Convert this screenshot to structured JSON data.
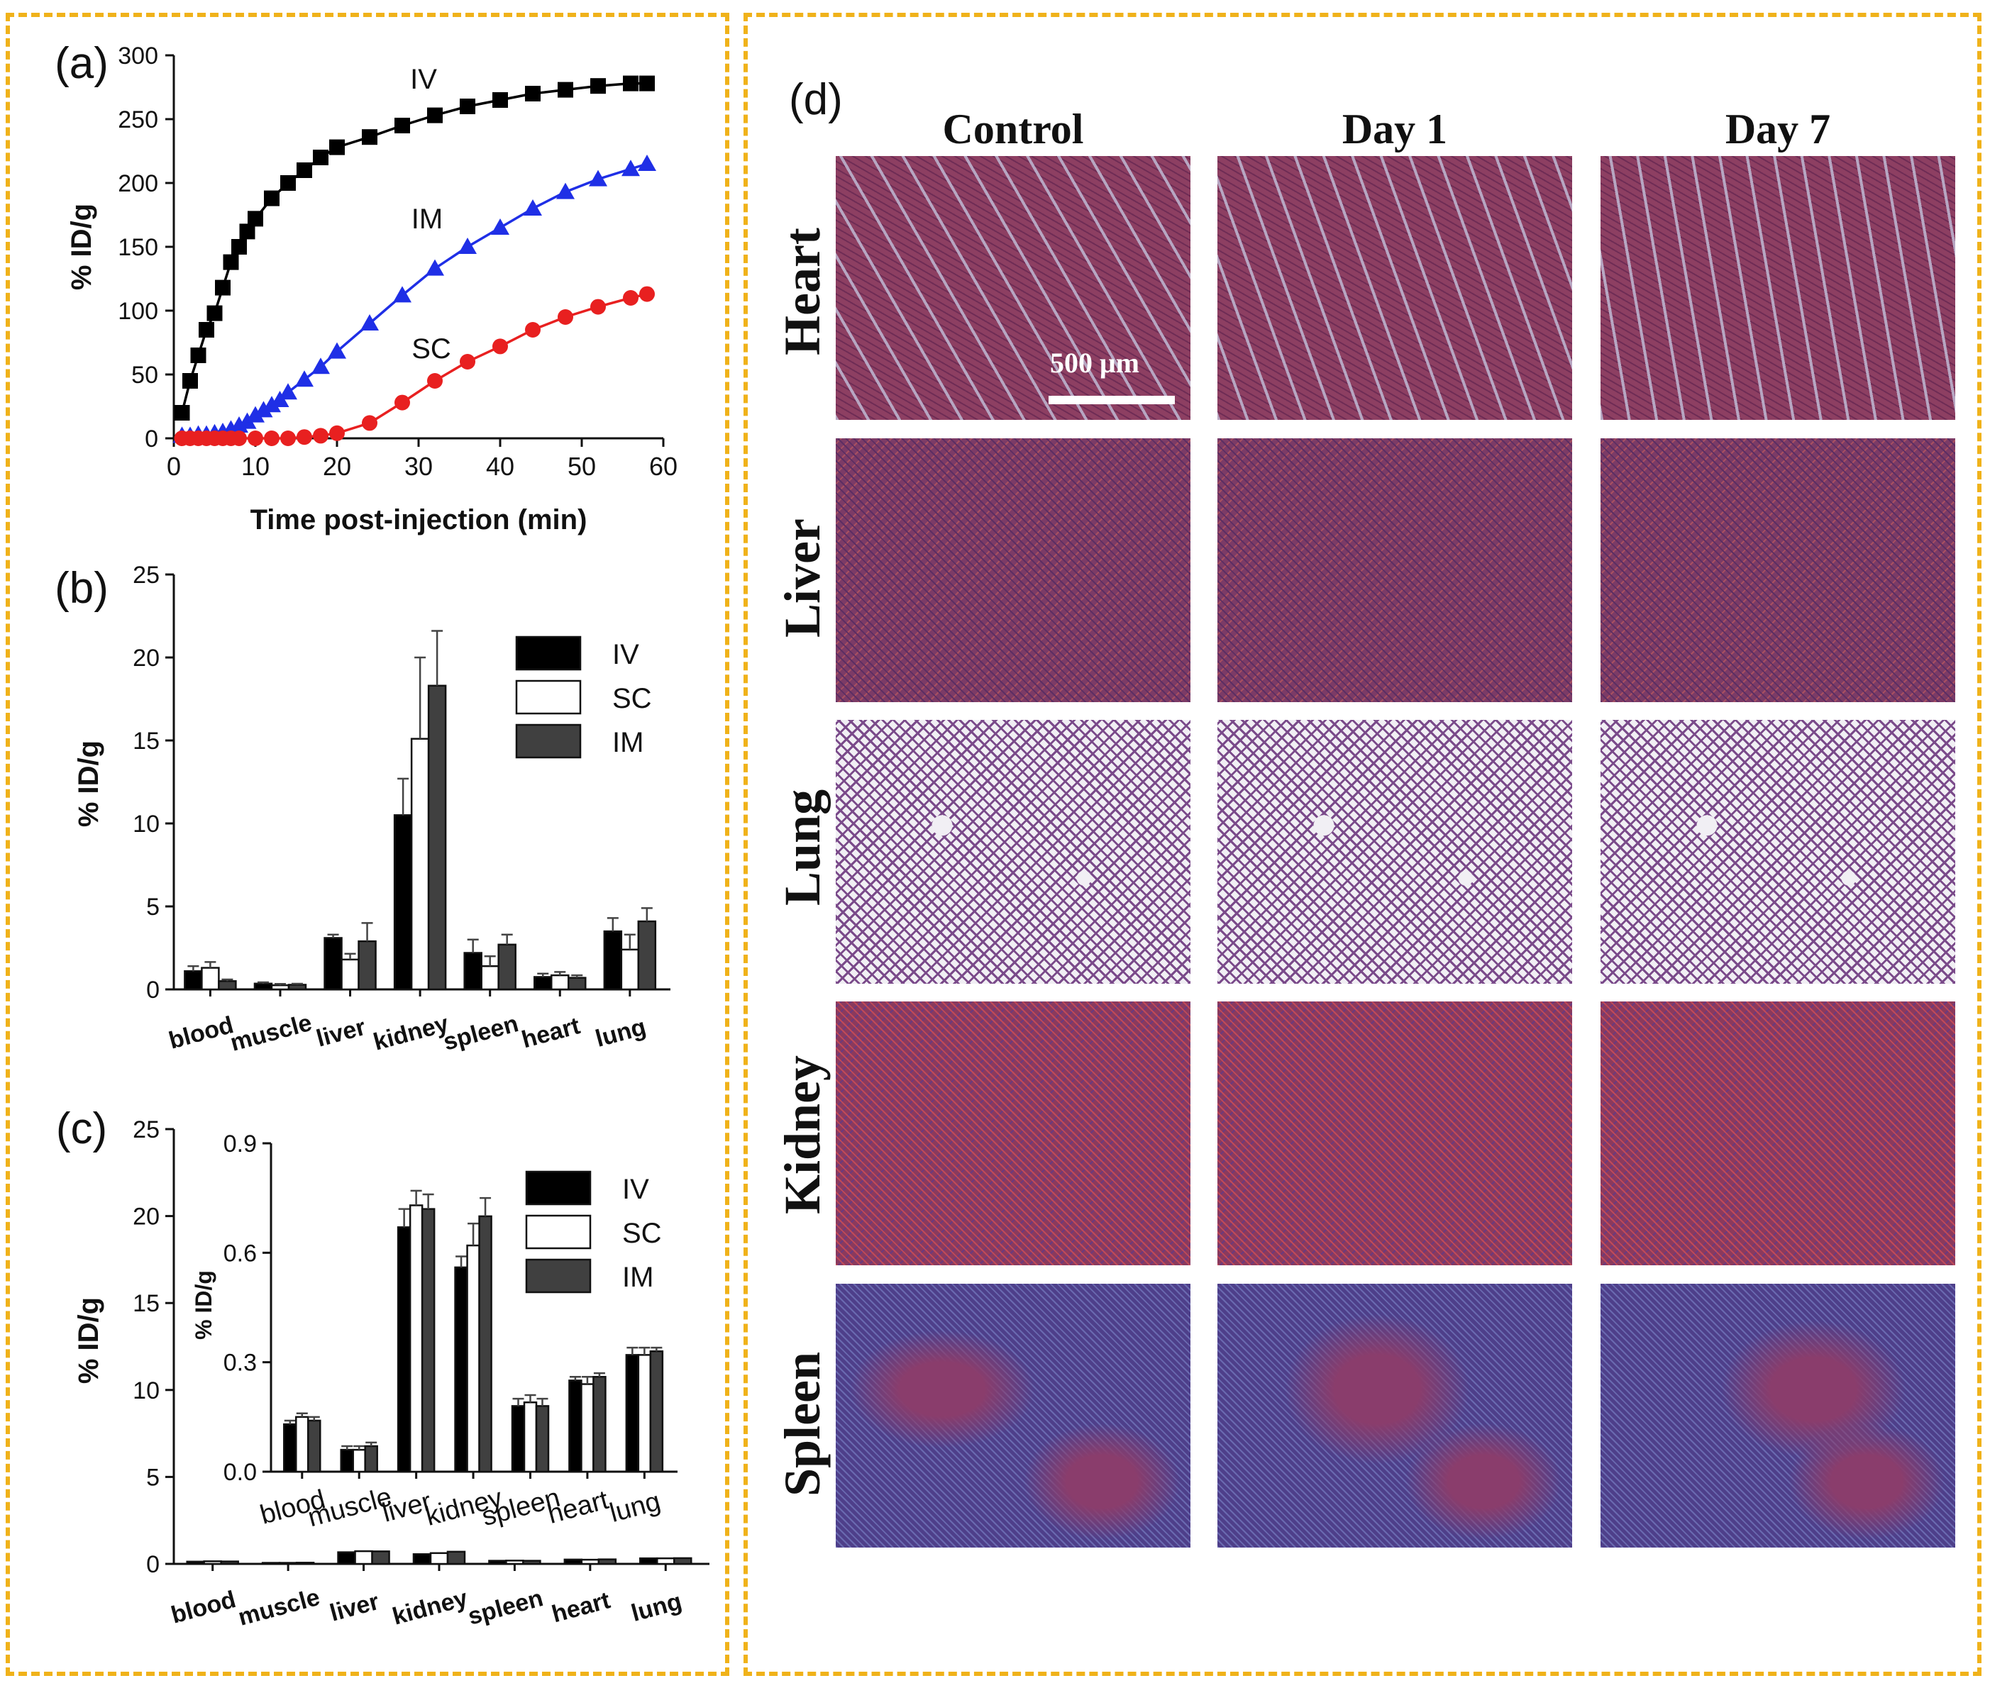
{
  "colors": {
    "frame": "#f0b21a",
    "iv": "#000000",
    "im": "#1f2fe6",
    "sc": "#e82020",
    "bar_iv": "#000000",
    "bar_sc": "#ffffff",
    "bar_im": "#404040"
  },
  "panel_labels": {
    "a": "(a)",
    "b": "(b)",
    "c": "(c)",
    "d": "(d)"
  },
  "chart_data": [
    {
      "id": "a",
      "type": "line",
      "title": "",
      "xlabel": "Time post-injection (min)",
      "ylabel": "% ID/g",
      "xlim": [
        0,
        60
      ],
      "ylim": [
        0,
        300
      ],
      "xticks": [
        "0",
        "10",
        "20",
        "30",
        "40",
        "50",
        "60"
      ],
      "yticks": [
        "0",
        "50",
        "100",
        "150",
        "200",
        "250",
        "300"
      ],
      "series": [
        {
          "name": "IV",
          "marker": "square",
          "color": "#000000",
          "x": [
            1,
            2,
            3,
            4,
            5,
            6,
            7,
            8,
            9,
            10,
            12,
            14,
            16,
            18,
            20,
            24,
            28,
            32,
            36,
            40,
            44,
            48,
            52,
            56,
            58
          ],
          "y": [
            20,
            45,
            65,
            85,
            98,
            118,
            138,
            150,
            162,
            172,
            188,
            200,
            210,
            220,
            228,
            236,
            245,
            253,
            260,
            265,
            270,
            273,
            276,
            278,
            278
          ]
        },
        {
          "name": "IM",
          "marker": "triangle",
          "color": "#1f2fe6",
          "x": [
            1,
            2,
            3,
            4,
            5,
            6,
            7,
            8,
            9,
            10,
            11,
            12,
            13,
            14,
            16,
            18,
            20,
            24,
            28,
            32,
            36,
            40,
            44,
            48,
            52,
            56,
            58
          ],
          "y": [
            2,
            2,
            3,
            3,
            4,
            5,
            7,
            10,
            13,
            18,
            22,
            26,
            30,
            36,
            46,
            56,
            68,
            90,
            112,
            133,
            150,
            165,
            180,
            193,
            203,
            211,
            215
          ]
        },
        {
          "name": "SC",
          "marker": "circle",
          "color": "#e82020",
          "x": [
            1,
            2,
            3,
            4,
            5,
            6,
            7,
            8,
            10,
            12,
            14,
            16,
            18,
            20,
            24,
            28,
            32,
            36,
            40,
            44,
            48,
            52,
            56,
            58
          ],
          "y": [
            0,
            0,
            0,
            0,
            0,
            0,
            0,
            0,
            0,
            0,
            0,
            1,
            2,
            4,
            12,
            28,
            45,
            60,
            72,
            85,
            95,
            103,
            110,
            113
          ]
        }
      ],
      "annotations": [
        "IV",
        "IM",
        "SC"
      ]
    },
    {
      "id": "b",
      "type": "bar",
      "ylabel": "% ID/g",
      "ylim": [
        0,
        25
      ],
      "yticks": [
        "0",
        "5",
        "10",
        "15",
        "20",
        "25"
      ],
      "categories": [
        "blood",
        "muscle",
        "liver",
        "kidney",
        "spleen",
        "heart",
        "lung"
      ],
      "legend": [
        "IV",
        "SC",
        "IM"
      ],
      "series": [
        {
          "name": "IV",
          "values": [
            1.1,
            0.35,
            3.1,
            10.5,
            2.2,
            0.75,
            3.5
          ],
          "errors": [
            0.3,
            0.08,
            0.2,
            2.2,
            0.8,
            0.2,
            0.8
          ]
        },
        {
          "name": "SC",
          "values": [
            1.3,
            0.25,
            1.8,
            15.1,
            1.4,
            0.85,
            2.4
          ],
          "errors": [
            0.35,
            0.08,
            0.35,
            4.9,
            0.6,
            0.2,
            0.9
          ]
        },
        {
          "name": "IM",
          "values": [
            0.5,
            0.28,
            2.9,
            18.3,
            2.7,
            0.7,
            4.1
          ],
          "errors": [
            0.1,
            0.06,
            1.1,
            3.3,
            0.6,
            0.15,
            0.8
          ]
        }
      ]
    },
    {
      "id": "c",
      "type": "bar",
      "ylabel": "% ID/g",
      "ylim": [
        0,
        25
      ],
      "yticks": [
        "0",
        "5",
        "10",
        "15",
        "20",
        "25"
      ],
      "categories": [
        "blood",
        "muscle",
        "liver",
        "kidney",
        "spleen",
        "heart",
        "lung"
      ],
      "legend": [
        "IV",
        "SC",
        "IM"
      ],
      "series": [
        {
          "name": "IV",
          "values": [
            0.13,
            0.06,
            0.67,
            0.56,
            0.18,
            0.25,
            0.32
          ],
          "errors": [
            0.01,
            0.01,
            0.05,
            0.03,
            0.02,
            0.01,
            0.02
          ]
        },
        {
          "name": "SC",
          "values": [
            0.15,
            0.06,
            0.73,
            0.62,
            0.19,
            0.24,
            0.32
          ],
          "errors": [
            0.01,
            0.01,
            0.04,
            0.06,
            0.02,
            0.02,
            0.02
          ]
        },
        {
          "name": "IM",
          "values": [
            0.14,
            0.07,
            0.72,
            0.7,
            0.18,
            0.26,
            0.33
          ],
          "errors": [
            0.01,
            0.01,
            0.04,
            0.05,
            0.02,
            0.01,
            0.01
          ]
        }
      ],
      "inset": {
        "ylabel": "% ID/g",
        "ylim": [
          0,
          0.9
        ],
        "yticks": [
          "0.0",
          "0.3",
          "0.6",
          "0.9"
        ]
      }
    }
  ],
  "histology": {
    "columns": [
      "Control",
      "Day 1",
      "Day 7"
    ],
    "rows": [
      "Heart",
      "Liver",
      "Lung",
      "Kidney",
      "Spleen"
    ],
    "scale_bar": "500 μm"
  }
}
